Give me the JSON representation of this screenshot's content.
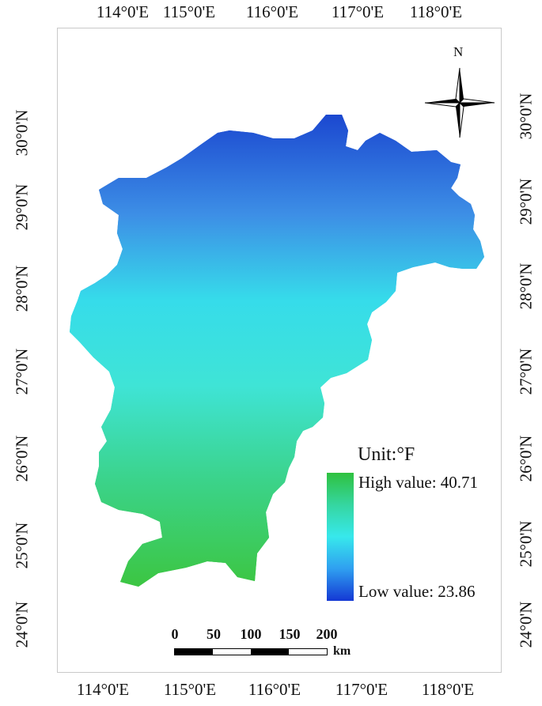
{
  "longitude_ticks": [
    "114°0'E",
    "115°0'E",
    "116°0'E",
    "117°0'E",
    "118°0'E"
  ],
  "latitude_ticks": [
    "30°0'N",
    "29°0'N",
    "28°0'N",
    "27°0'N",
    "26°0'N",
    "25°0'N",
    "24°0'N"
  ],
  "north_arrow": {
    "label": "N",
    "icon": "compass-rose-icon"
  },
  "legend": {
    "unit": "Unit:°F",
    "high": "High value: 40.71",
    "low": "Low value: 23.86",
    "high_value": 40.71,
    "low_value": 23.86,
    "gradient_colors": [
      "#2fc13f",
      "#35d6a0",
      "#37e8ec",
      "#2f9ff0",
      "#1438d4"
    ]
  },
  "scale_bar": {
    "labels": [
      "0",
      "50",
      "100",
      "150",
      "200"
    ],
    "unit": "km",
    "segment_colors": [
      "#000000",
      "#ffffff",
      "#000000",
      "#ffffff"
    ]
  },
  "map": {
    "fill_colors": {
      "south": "#3cc643",
      "south_central": "#3bd38a",
      "central": "#3fe4d6",
      "north_central": "#36dcea",
      "north": "#3d8fe6",
      "deep_north": "#1a45cf"
    },
    "boundary_color": "#b8d8e0"
  }
}
